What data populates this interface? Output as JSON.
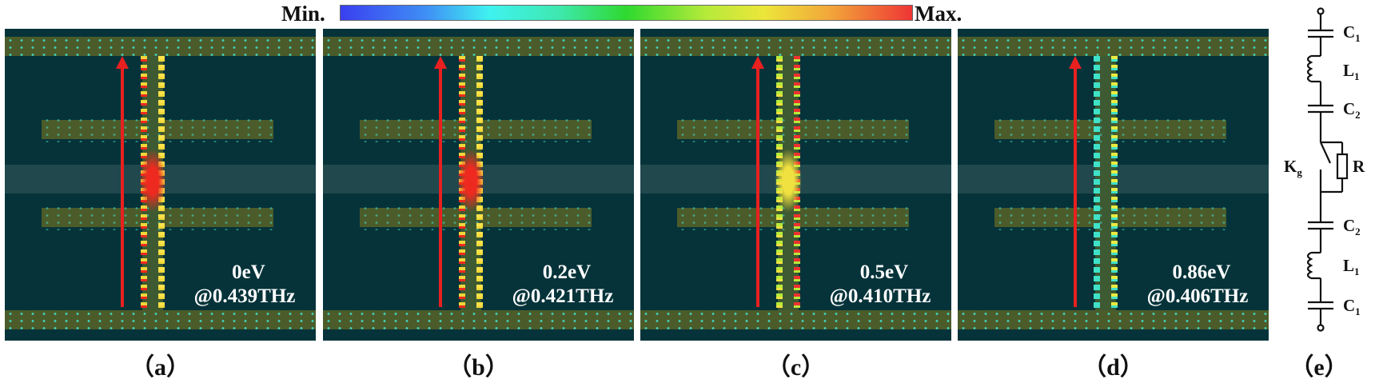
{
  "colorbar": {
    "min_label": "Min.",
    "max_label": "Max.",
    "colors": [
      "#3a3ff0",
      "#3ff2f0",
      "#2fd92f",
      "#ece63a",
      "#ee3535"
    ]
  },
  "panels": [
    {
      "id": "a",
      "label": "（a）",
      "fermi": "0eV",
      "freq": "@0.439THz",
      "intensity": "high"
    },
    {
      "id": "b",
      "label": "（b）",
      "fermi": "0.2eV",
      "freq": "@0.421THz",
      "intensity": "high"
    },
    {
      "id": "c",
      "label": "（c）",
      "fermi": "0.5eV",
      "freq": "@0.410THz",
      "intensity": "medium"
    },
    {
      "id": "d",
      "label": "（d）",
      "fermi": "0.86eV",
      "freq": "@0.406THz",
      "intensity": "low"
    }
  ],
  "circuit": {
    "label": "（e）",
    "components": [
      {
        "name": "C",
        "sub": "1"
      },
      {
        "name": "L",
        "sub": "1"
      },
      {
        "name": "C",
        "sub": "2"
      },
      {
        "name": "R",
        "sub": ""
      },
      {
        "name": "K",
        "sub": "g"
      },
      {
        "name": "C",
        "sub": "2"
      },
      {
        "name": "L",
        "sub": "1"
      },
      {
        "name": "C",
        "sub": "1"
      }
    ]
  },
  "colors": {
    "background": "#06333a",
    "metal_strip": "#4b5c2a",
    "graphene_band": "#244a50",
    "arrow": "#e82020"
  }
}
